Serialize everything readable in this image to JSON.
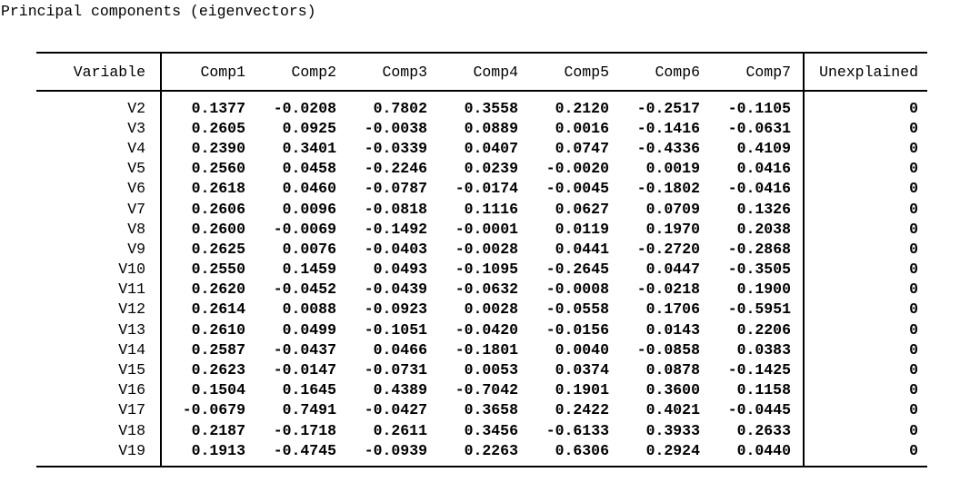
{
  "title": "Principal components (eigenvectors)",
  "colors": {
    "background": "#ffffff",
    "text": "#000000",
    "rule": "#000000"
  },
  "table": {
    "columns": [
      "Variable",
      "Comp1",
      "Comp2",
      "Comp3",
      "Comp4",
      "Comp5",
      "Comp6",
      "Comp7",
      "Unexplained"
    ],
    "rows": [
      {
        "variable": "V2",
        "values": [
          "0.1377",
          "-0.0208",
          "0.7802",
          "0.3558",
          "0.2120",
          "-0.2517",
          "-0.1105"
        ],
        "unexplained": "0"
      },
      {
        "variable": "V3",
        "values": [
          "0.2605",
          "0.0925",
          "-0.0038",
          "0.0889",
          "0.0016",
          "-0.1416",
          "-0.0631"
        ],
        "unexplained": "0"
      },
      {
        "variable": "V4",
        "values": [
          "0.2390",
          "0.3401",
          "-0.0339",
          "0.0407",
          "0.0747",
          "-0.4336",
          "0.4109"
        ],
        "unexplained": "0"
      },
      {
        "variable": "V5",
        "values": [
          "0.2560",
          "0.0458",
          "-0.2246",
          "0.0239",
          "-0.0020",
          "0.0019",
          "0.0416"
        ],
        "unexplained": "0"
      },
      {
        "variable": "V6",
        "values": [
          "0.2618",
          "0.0460",
          "-0.0787",
          "-0.0174",
          "-0.0045",
          "-0.1802",
          "-0.0416"
        ],
        "unexplained": "0"
      },
      {
        "variable": "V7",
        "values": [
          "0.2606",
          "0.0096",
          "-0.0818",
          "0.1116",
          "0.0627",
          "0.0709",
          "0.1326"
        ],
        "unexplained": "0"
      },
      {
        "variable": "V8",
        "values": [
          "0.2600",
          "-0.0069",
          "-0.1492",
          "-0.0001",
          "0.0119",
          "0.1970",
          "0.2038"
        ],
        "unexplained": "0"
      },
      {
        "variable": "V9",
        "values": [
          "0.2625",
          "0.0076",
          "-0.0403",
          "-0.0028",
          "0.0441",
          "-0.2720",
          "-0.2868"
        ],
        "unexplained": "0"
      },
      {
        "variable": "V10",
        "values": [
          "0.2550",
          "0.1459",
          "0.0493",
          "-0.1095",
          "-0.2645",
          "0.0447",
          "-0.3505"
        ],
        "unexplained": "0"
      },
      {
        "variable": "V11",
        "values": [
          "0.2620",
          "-0.0452",
          "-0.0439",
          "-0.0632",
          "-0.0008",
          "-0.0218",
          "0.1900"
        ],
        "unexplained": "0"
      },
      {
        "variable": "V12",
        "values": [
          "0.2614",
          "0.0088",
          "-0.0923",
          "0.0028",
          "-0.0558",
          "0.1706",
          "-0.5951"
        ],
        "unexplained": "0"
      },
      {
        "variable": "V13",
        "values": [
          "0.2610",
          "0.0499",
          "-0.1051",
          "-0.0420",
          "-0.0156",
          "0.0143",
          "0.2206"
        ],
        "unexplained": "0"
      },
      {
        "variable": "V14",
        "values": [
          "0.2587",
          "-0.0437",
          "0.0466",
          "-0.1801",
          "0.0040",
          "-0.0858",
          "0.0383"
        ],
        "unexplained": "0"
      },
      {
        "variable": "V15",
        "values": [
          "0.2623",
          "-0.0147",
          "-0.0731",
          "0.0053",
          "0.0374",
          "0.0878",
          "-0.1425"
        ],
        "unexplained": "0"
      },
      {
        "variable": "V16",
        "values": [
          "0.1504",
          "0.1645",
          "0.4389",
          "-0.7042",
          "0.1901",
          "0.3600",
          "0.1158"
        ],
        "unexplained": "0"
      },
      {
        "variable": "V17",
        "values": [
          "-0.0679",
          "0.7491",
          "-0.0427",
          "0.3658",
          "0.2422",
          "0.4021",
          "-0.0445"
        ],
        "unexplained": "0"
      },
      {
        "variable": "V18",
        "values": [
          "0.2187",
          "-0.1718",
          "0.2611",
          "0.3456",
          "-0.6133",
          "0.3933",
          "0.2633"
        ],
        "unexplained": "0"
      },
      {
        "variable": "V19",
        "values": [
          "0.1913",
          "-0.4745",
          "-0.0939",
          "0.2263",
          "0.6306",
          "0.2924",
          "0.0440"
        ],
        "unexplained": "0"
      }
    ]
  }
}
